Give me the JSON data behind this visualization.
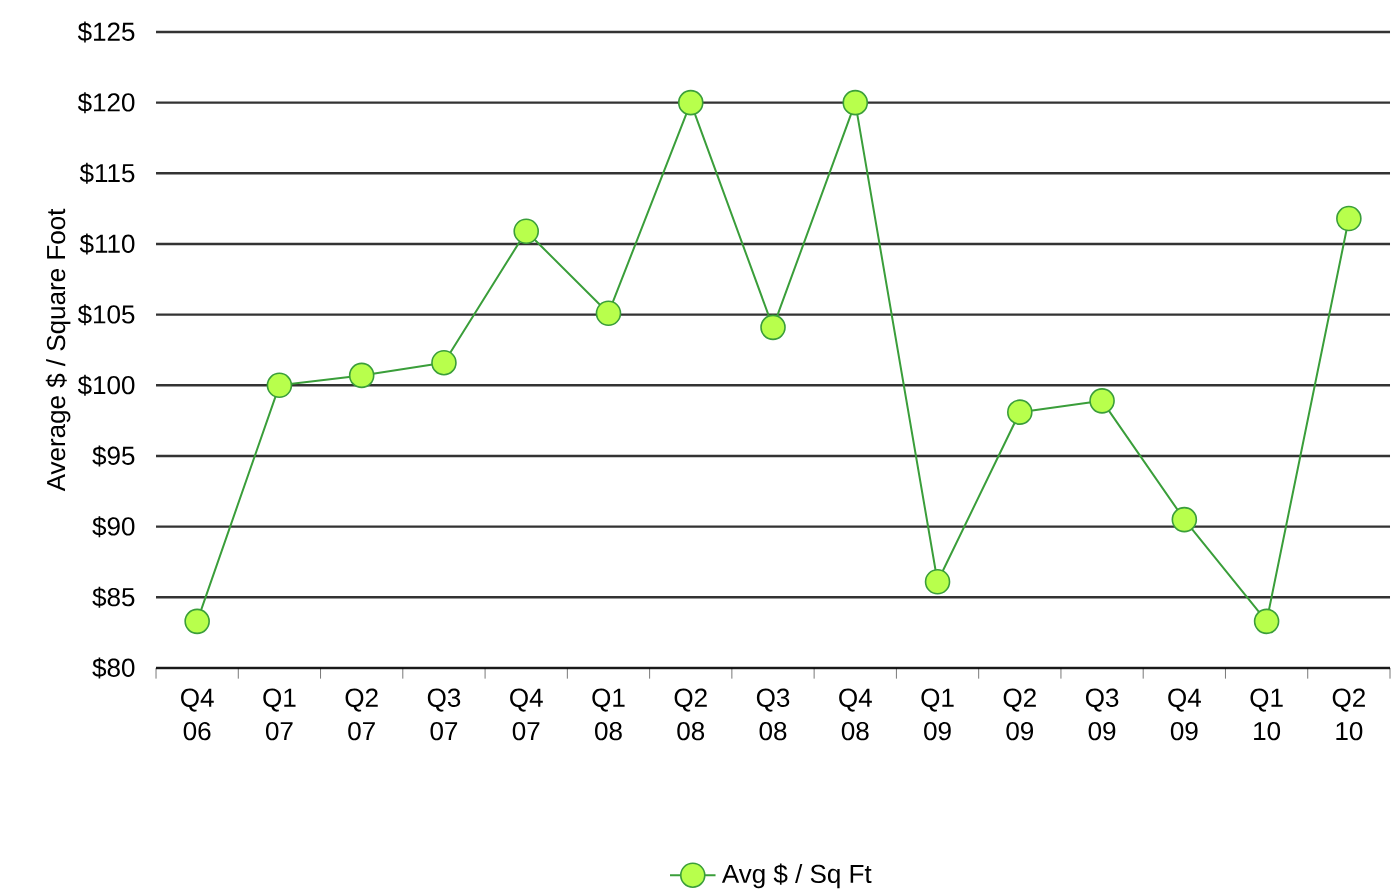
{
  "chart_data": {
    "type": "line",
    "ylabel": "Average $ / Square Foot",
    "categories": [
      "Q4 06",
      "Q1 07",
      "Q2 07",
      "Q3 07",
      "Q4 07",
      "Q1 08",
      "Q2 08",
      "Q3 08",
      "Q4 08",
      "Q1 09",
      "Q2 09",
      "Q3 09",
      "Q4 09",
      "Q1 10",
      "Q2 10"
    ],
    "series": [
      {
        "name": "Avg $ / Sq Ft",
        "color": "#3a9e3a",
        "values": [
          83.3,
          100.0,
          100.7,
          101.6,
          110.9,
          105.1,
          120.0,
          104.1,
          120.0,
          86.1,
          98.1,
          98.9,
          90.5,
          83.3,
          111.8
        ]
      }
    ],
    "ylim": [
      80,
      125
    ],
    "yticks": [
      {
        "value": 80,
        "label": "$80"
      },
      {
        "value": 85,
        "label": "$85"
      },
      {
        "value": 90,
        "label": "$90"
      },
      {
        "value": 95,
        "label": "$95"
      },
      {
        "value": 100,
        "label": "$100"
      },
      {
        "value": 105,
        "label": "$105"
      },
      {
        "value": 110,
        "label": "$110"
      },
      {
        "value": 115,
        "label": "$115"
      },
      {
        "value": 120,
        "label": "$120"
      },
      {
        "value": 125,
        "label": "$125"
      }
    ],
    "grid": "y",
    "legend": "bottom",
    "marker": "circle",
    "line_style": "solid"
  }
}
